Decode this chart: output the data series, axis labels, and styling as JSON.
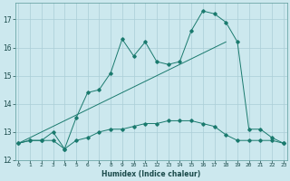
{
  "xlabel": "Humidex (Indice chaleur)",
  "background_color": "#cce8ee",
  "grid_color": "#aacdd6",
  "line_color": "#1a7a6e",
  "x_values": [
    0,
    1,
    2,
    3,
    4,
    5,
    6,
    7,
    8,
    9,
    10,
    11,
    12,
    13,
    14,
    15,
    16,
    17,
    18,
    19,
    20,
    21,
    22,
    23
  ],
  "line1_y": [
    12.6,
    12.7,
    12.7,
    13.0,
    12.4,
    13.5,
    14.4,
    14.5,
    15.1,
    16.3,
    15.7,
    16.2,
    15.5,
    15.4,
    15.5,
    16.6,
    17.3,
    17.2,
    16.9,
    16.2,
    13.1,
    13.1,
    12.8,
    12.6
  ],
  "line2_y": [
    12.6,
    12.7,
    12.7,
    12.7,
    12.4,
    12.7,
    12.8,
    13.0,
    13.1,
    13.1,
    13.2,
    13.3,
    13.3,
    13.4,
    13.4,
    13.4,
    13.3,
    13.2,
    12.9,
    12.7,
    12.7,
    12.7,
    12.7,
    12.6
  ],
  "line3_start_x": 0,
  "line3_start_y": 12.6,
  "line3_end_x": 18,
  "line3_end_y": 16.2,
  "ylim": [
    12.0,
    17.6
  ],
  "yticks": [
    12,
    13,
    14,
    15,
    16,
    17
  ],
  "xlim": [
    -0.3,
    23.3
  ],
  "xticks": [
    0,
    1,
    2,
    3,
    4,
    5,
    6,
    7,
    8,
    9,
    10,
    11,
    12,
    13,
    14,
    15,
    16,
    17,
    18,
    19,
    20,
    21,
    22,
    23
  ]
}
